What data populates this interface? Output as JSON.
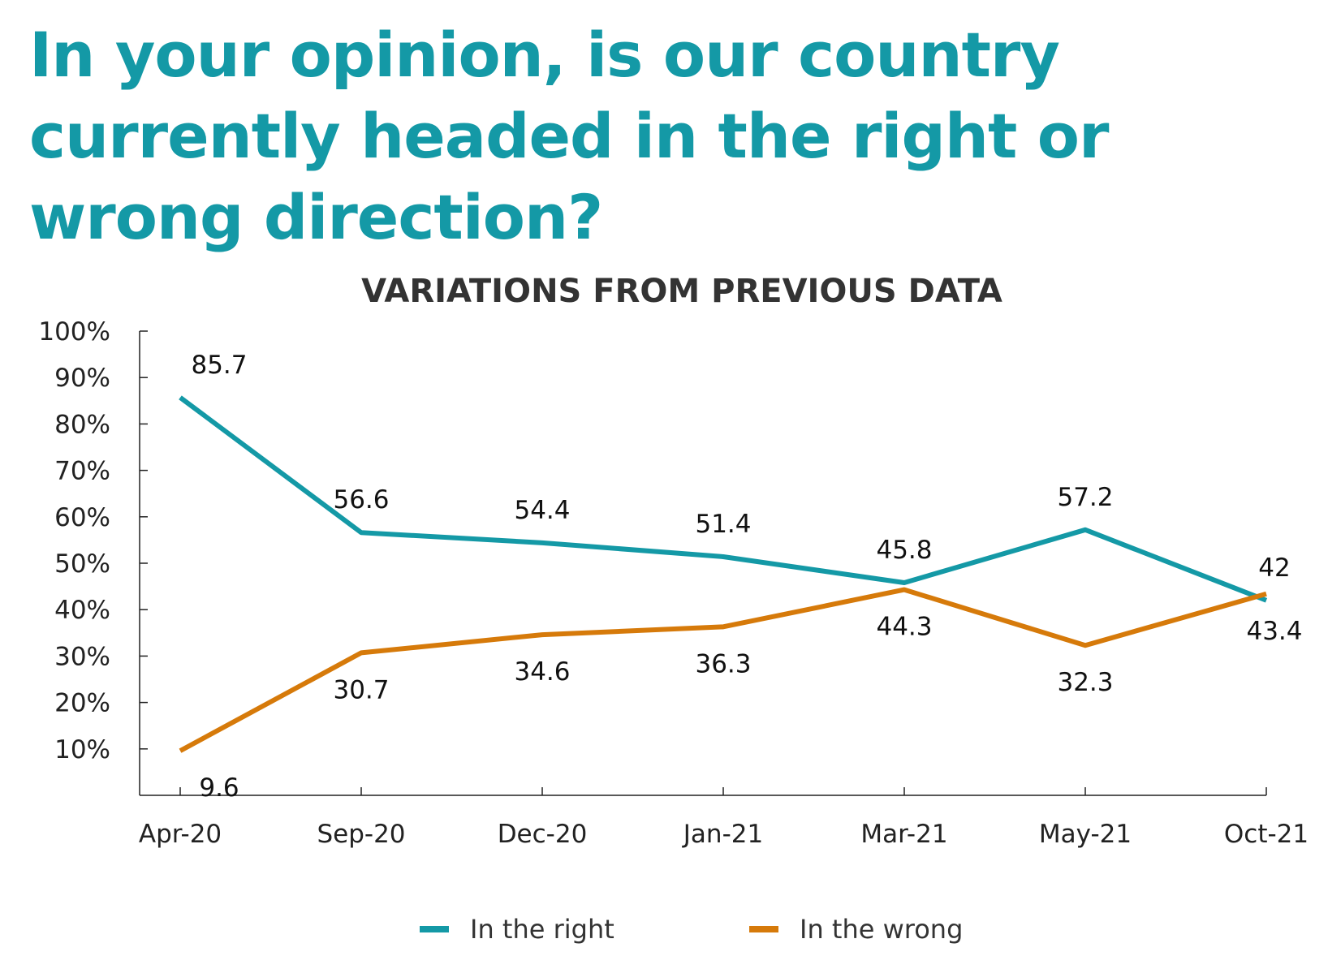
{
  "headline": "In your opinion, is our country currently headed in the right or wrong direction?",
  "chart_data": {
    "type": "line",
    "title": "VARIATIONS FROM PREVIOUS DATA",
    "categories": [
      "Apr-20",
      "Sep-20",
      "Dec-20",
      "Jan-21",
      "Mar-21",
      "May-21",
      "Oct-21"
    ],
    "yticks": [
      "100%",
      "90%",
      "80%",
      "70%",
      "60%",
      "50%",
      "40%",
      "30%",
      "20%",
      "10%"
    ],
    "ylim": [
      0,
      100
    ],
    "grid": false,
    "legend_position": "bottom",
    "series": [
      {
        "name": "In the right",
        "color": "#1499a6",
        "values": [
          85.7,
          56.6,
          54.4,
          51.4,
          45.8,
          57.2,
          42
        ],
        "labels": [
          "85.7",
          "56.6",
          "54.4",
          "51.4",
          "45.8",
          "57.2",
          "42"
        ],
        "label_side": "above"
      },
      {
        "name": "In the wrong",
        "color": "#d67a0a",
        "values": [
          9.6,
          30.7,
          34.6,
          36.3,
          44.3,
          32.3,
          43.4
        ],
        "labels": [
          "9.6",
          "30.7",
          "34.6",
          "36.3",
          "44.3",
          "32.3",
          "43.4"
        ],
        "label_side": "below"
      }
    ]
  }
}
